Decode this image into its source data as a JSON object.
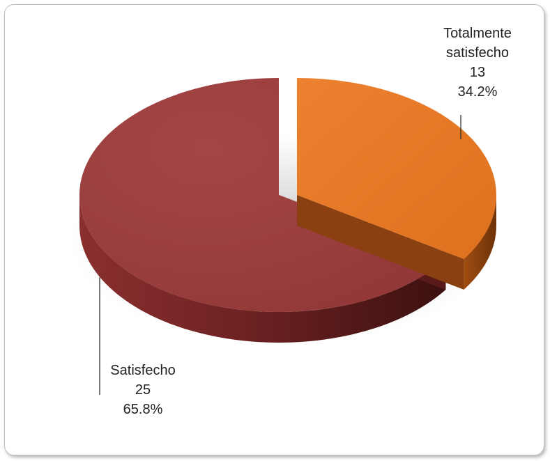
{
  "chart_data": {
    "type": "pie",
    "title": "",
    "slices": [
      {
        "label": "Totalmente satisfecho",
        "value": 13,
        "percent": "34.2%",
        "color": "#E87722"
      },
      {
        "label": "Satisfecho",
        "value": 25,
        "percent": "65.8%",
        "color": "#9B3C3C"
      }
    ],
    "labels": {
      "a": {
        "line1": "Totalmente",
        "line2": "satisfecho",
        "value": "13",
        "percent": "34.2%"
      },
      "b": {
        "name": "Satisfecho",
        "value": "25",
        "percent": "65.8%"
      }
    },
    "exploded": "Totalmente satisfecho",
    "legend": "none"
  }
}
